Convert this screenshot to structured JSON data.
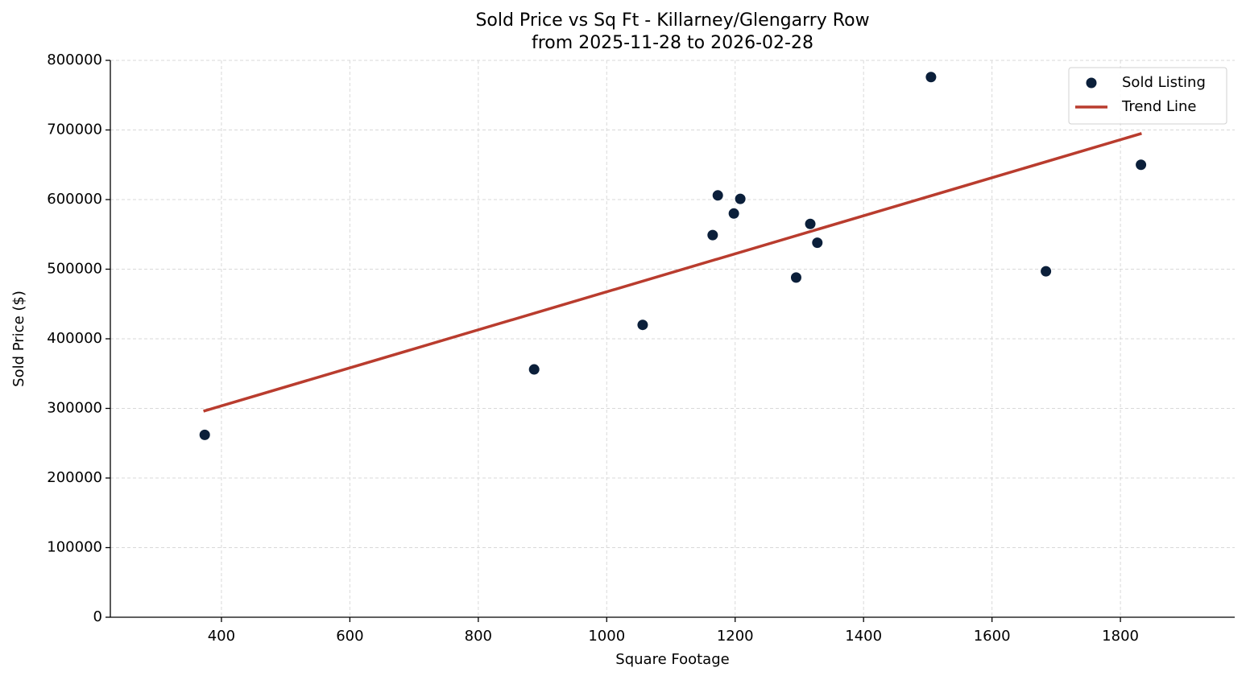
{
  "chart_data": {
    "type": "scatter",
    "title": "Sold Price vs Sq Ft - Killarney/Glengarry Row",
    "subtitle": "from 2025-11-28 to 2026-02-28",
    "x_label": "Square Footage",
    "y_label": "Sold Price ($)",
    "xlim": [
      227,
      1978
    ],
    "ylim": [
      0,
      800000
    ],
    "xticks": [
      400,
      600,
      800,
      1000,
      1200,
      1400,
      1600,
      1800
    ],
    "yticks": [
      0,
      100000,
      200000,
      300000,
      400000,
      500000,
      600000,
      700000,
      800000
    ],
    "grid": true,
    "legend": "upper right",
    "series": [
      {
        "name": "Sold Listing",
        "type": "scatter",
        "color": "#0b1f3a",
        "x": [
          374,
          887,
          1056,
          1165,
          1173,
          1198,
          1208,
          1295,
          1317,
          1328,
          1505,
          1684,
          1832
        ],
        "values": [
          262000,
          356000,
          420000,
          549000,
          606000,
          580000,
          601000,
          488000,
          565000,
          538000,
          776000,
          497000,
          650000
        ]
      },
      {
        "name": "Trend Line",
        "type": "line",
        "color": "#b93c2e",
        "x": [
          372,
          1833
        ],
        "values": [
          296000,
          695000
        ]
      }
    ]
  }
}
